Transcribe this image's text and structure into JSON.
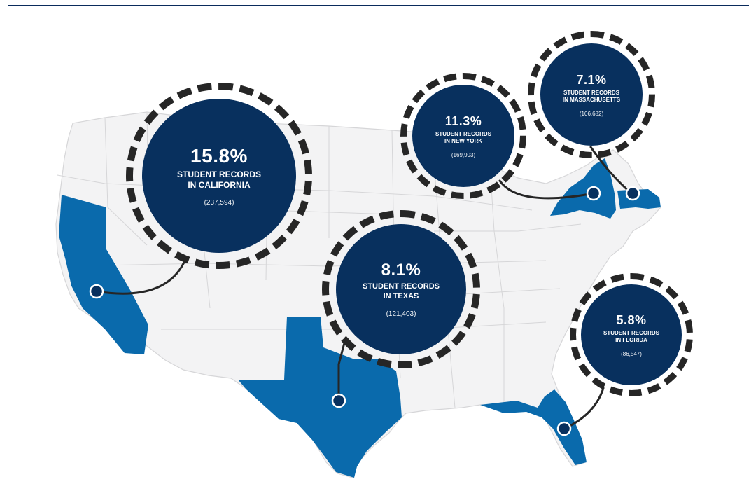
{
  "colors": {
    "navy": "#08305e",
    "state_highlight": "#0a6aac",
    "map_fill": "#f3f3f4",
    "map_border": "#d6d6d8",
    "ring_dash": "#262626"
  },
  "states": [
    {
      "id": "california",
      "percent": "15.8%",
      "line1": "STUDENT RECORDS",
      "line2": "IN CALIFORNIA",
      "count": "(237,594)"
    },
    {
      "id": "texas",
      "percent": "8.1%",
      "line1": "STUDENT RECORDS",
      "line2": "IN TEXAS",
      "count": "(121,403)"
    },
    {
      "id": "new_york",
      "percent": "11.3%",
      "line1": "STUDENT RECORDS",
      "line2": "IN NEW YORK",
      "count": "(169,903)"
    },
    {
      "id": "massachusetts",
      "percent": "7.1%",
      "line1": "STUDENT RECORDS",
      "line2": "IN MASSACHUSETTS",
      "count": "(106,682)"
    },
    {
      "id": "florida",
      "percent": "5.8%",
      "line1": "STUDENT RECORDS",
      "line2": "IN FLORIDA",
      "count": "(86,547)"
    }
  ]
}
